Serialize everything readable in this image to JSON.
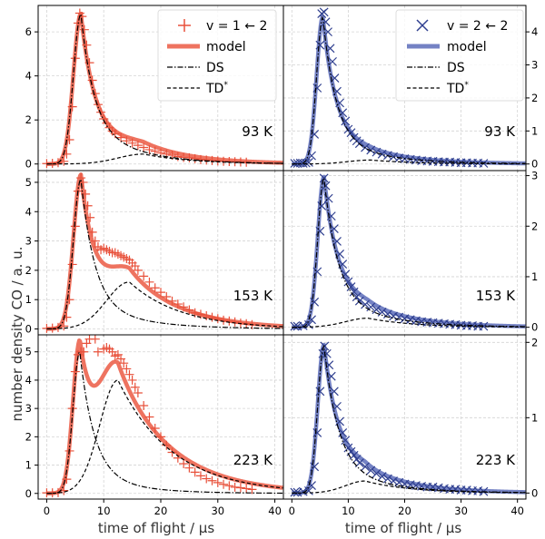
{
  "figure": {
    "ylabel": "number density CO / a. u.",
    "xlabel_left": "time of flight / µs",
    "xlabel_right": "time of flight / µs",
    "xlim": [
      -1.5,
      41.5
    ],
    "x_ticks": [
      "0",
      "10",
      "20",
      "30",
      "40"
    ]
  },
  "colors": {
    "v1": "#e8503a",
    "v1_model": "#ee7360",
    "v2": "#2f3f8f",
    "v2_model": "#7482c4",
    "ds": "#000000",
    "td": "#000000",
    "grid": "#d4d4d4"
  },
  "legend": {
    "left": {
      "data_label": "v = 1 ← 2",
      "model_label": "model",
      "ds_label": "DS",
      "td_label": "TD",
      "td_sup": "*"
    },
    "right": {
      "data_label": "v = 2 ← 2",
      "model_label": "model",
      "ds_label": "DS",
      "td_label": "TD",
      "td_sup": "*"
    }
  },
  "chart_data": [
    {
      "type": "line",
      "panel": "v1-93K",
      "temperature_label": "93 K",
      "ylim": [
        -0.3,
        7.2
      ],
      "y_ticks": [
        0,
        2,
        4,
        6
      ],
      "ds": {
        "amp": 6.8,
        "t0": 6.0,
        "rise": 1.3,
        "decay": [
          {
            "w": 0.72,
            "tau": 2.2
          },
          {
            "w": 0.28,
            "tau": 8.5
          }
        ]
      },
      "td": {
        "amp": 0.45,
        "t0": 17.0,
        "rise": 4.5,
        "decay": [
          {
            "w": 1.0,
            "tau": 8.5
          }
        ]
      },
      "data_points": [
        [
          0,
          0.02
        ],
        [
          1,
          0.03
        ],
        [
          2,
          0.06
        ],
        [
          3,
          0.12
        ],
        [
          3.5,
          0.45
        ],
        [
          4,
          1.1
        ],
        [
          4.5,
          2.6
        ],
        [
          5,
          4.8
        ],
        [
          5.5,
          6.4
        ],
        [
          5.8,
          6.85
        ],
        [
          6.2,
          6.7
        ],
        [
          6.6,
          6.1
        ],
        [
          7,
          5.4
        ],
        [
          7.5,
          4.6
        ],
        [
          8,
          3.8
        ],
        [
          8.5,
          3.2
        ],
        [
          9,
          2.7
        ],
        [
          9.5,
          2.35
        ],
        [
          10,
          2.05
        ],
        [
          10.5,
          1.85
        ],
        [
          11,
          1.65
        ],
        [
          11.5,
          1.5
        ],
        [
          12,
          1.38
        ],
        [
          13,
          1.2
        ],
        [
          14,
          1.05
        ],
        [
          15,
          0.95
        ],
        [
          16,
          0.85
        ],
        [
          17,
          0.75
        ],
        [
          18,
          0.65
        ],
        [
          19,
          0.58
        ],
        [
          20,
          0.5
        ],
        [
          21,
          0.45
        ],
        [
          22,
          0.4
        ],
        [
          23,
          0.34
        ],
        [
          24,
          0.3
        ],
        [
          25,
          0.28
        ],
        [
          26,
          0.24
        ],
        [
          27,
          0.2
        ],
        [
          28,
          0.18
        ],
        [
          29,
          0.16
        ],
        [
          30,
          0.14
        ],
        [
          31,
          0.12
        ],
        [
          32,
          0.11
        ],
        [
          33,
          0.1
        ],
        [
          34,
          0.09
        ],
        [
          35,
          0.08
        ]
      ]
    },
    {
      "type": "line",
      "panel": "v2-93K",
      "temperature_label": "93 K",
      "ylim": [
        -0.2,
        4.8
      ],
      "y_ticks": [
        0,
        1,
        2,
        3,
        4
      ],
      "ds": {
        "amp": 4.45,
        "t0": 5.5,
        "rise": 1.1,
        "decay": [
          {
            "w": 0.82,
            "tau": 2.3
          },
          {
            "w": 0.18,
            "tau": 9.0
          }
        ]
      },
      "td": {
        "amp": 0.12,
        "t0": 14.0,
        "rise": 4.0,
        "decay": [
          {
            "w": 1.0,
            "tau": 8.0
          }
        ]
      },
      "data_points": [
        [
          0.5,
          0.02
        ],
        [
          1,
          0.02
        ],
        [
          1.5,
          0.03
        ],
        [
          2,
          0.02
        ],
        [
          2.5,
          0.03
        ],
        [
          3,
          0.05
        ],
        [
          3.5,
          0.25
        ],
        [
          4,
          0.9
        ],
        [
          4.5,
          2.3
        ],
        [
          5,
          3.6
        ],
        [
          5.3,
          4.55
        ],
        [
          5.7,
          4.6
        ],
        [
          6,
          4.3
        ],
        [
          6.4,
          4.0
        ],
        [
          6.8,
          3.5
        ],
        [
          7.2,
          3.1
        ],
        [
          7.6,
          2.6
        ],
        [
          8,
          2.2
        ],
        [
          8.5,
          1.85
        ],
        [
          9,
          1.55
        ],
        [
          9.5,
          1.3
        ],
        [
          10,
          1.05
        ],
        [
          10.5,
          0.95
        ],
        [
          11,
          0.8
        ],
        [
          11.5,
          0.7
        ],
        [
          12,
          0.62
        ],
        [
          13,
          0.5
        ],
        [
          14,
          0.42
        ],
        [
          15,
          0.36
        ],
        [
          16,
          0.3
        ],
        [
          17,
          0.26
        ],
        [
          18,
          0.22
        ],
        [
          19,
          0.18
        ],
        [
          20,
          0.16
        ],
        [
          21,
          0.14
        ],
        [
          22,
          0.12
        ],
        [
          23,
          0.1
        ],
        [
          24,
          0.09
        ],
        [
          25,
          0.08
        ],
        [
          26,
          0.07
        ],
        [
          27,
          0.06
        ],
        [
          28,
          0.06
        ],
        [
          29,
          0.05
        ],
        [
          30,
          0.04
        ],
        [
          31,
          0.04
        ],
        [
          32,
          0.03
        ],
        [
          33,
          0.03
        ],
        [
          34,
          0.02
        ]
      ]
    },
    {
      "type": "line",
      "panel": "v1-153K",
      "temperature_label": "153 K",
      "ylim": [
        -0.2,
        5.4
      ],
      "y_ticks": [
        0,
        1,
        2,
        3,
        4,
        5
      ],
      "ds": {
        "amp": 5.1,
        "t0": 6.0,
        "rise": 1.3,
        "decay": [
          {
            "w": 0.82,
            "tau": 2.4
          },
          {
            "w": 0.18,
            "tau": 9.0
          }
        ]
      },
      "td": {
        "amp": 1.6,
        "t0": 14.5,
        "rise": 4.0,
        "decay": [
          {
            "w": 1.0,
            "tau": 9.0
          }
        ]
      },
      "data_points": [
        [
          0,
          0.02
        ],
        [
          1,
          0.03
        ],
        [
          2,
          0.05
        ],
        [
          3,
          0.1
        ],
        [
          3.5,
          0.4
        ],
        [
          4,
          1.0
        ],
        [
          4.5,
          2.2
        ],
        [
          5,
          3.5
        ],
        [
          5.5,
          4.7
        ],
        [
          6,
          5.15
        ],
        [
          6.4,
          5.0
        ],
        [
          6.8,
          4.6
        ],
        [
          7.2,
          4.2
        ],
        [
          7.6,
          3.8
        ],
        [
          8,
          3.3
        ],
        [
          8.5,
          3.0
        ],
        [
          9,
          2.8
        ],
        [
          9.5,
          2.7
        ],
        [
          10,
          2.75
        ],
        [
          10.5,
          2.7
        ],
        [
          11,
          2.65
        ],
        [
          11.5,
          2.6
        ],
        [
          12,
          2.6
        ],
        [
          12.5,
          2.55
        ],
        [
          13,
          2.5
        ],
        [
          13.5,
          2.45
        ],
        [
          14,
          2.4
        ],
        [
          14.5,
          2.35
        ],
        [
          15,
          2.25
        ],
        [
          15.5,
          2.15
        ],
        [
          16,
          2.0
        ],
        [
          17,
          1.8
        ],
        [
          18,
          1.6
        ],
        [
          19,
          1.4
        ],
        [
          20,
          1.25
        ],
        [
          21,
          1.1
        ],
        [
          22,
          0.95
        ],
        [
          23,
          0.85
        ],
        [
          24,
          0.75
        ],
        [
          25,
          0.65
        ],
        [
          26,
          0.55
        ],
        [
          27,
          0.5
        ],
        [
          28,
          0.45
        ],
        [
          29,
          0.4
        ],
        [
          30,
          0.35
        ],
        [
          31,
          0.3
        ],
        [
          32,
          0.27
        ],
        [
          33,
          0.24
        ],
        [
          34,
          0.2
        ],
        [
          35,
          0.18
        ],
        [
          36,
          0.15
        ]
      ]
    },
    {
      "type": "line",
      "panel": "v2-153K",
      "temperature_label": "153 K",
      "ylim": [
        -0.15,
        3.1
      ],
      "y_ticks": [
        0,
        1,
        2,
        3
      ],
      "ds": {
        "amp": 2.95,
        "t0": 5.7,
        "rise": 1.1,
        "decay": [
          {
            "w": 0.78,
            "tau": 2.4
          },
          {
            "w": 0.22,
            "tau": 9.0
          }
        ]
      },
      "td": {
        "amp": 0.18,
        "t0": 13.5,
        "rise": 4.0,
        "decay": [
          {
            "w": 1.0,
            "tau": 8.0
          }
        ]
      },
      "data_points": [
        [
          0.5,
          0.02
        ],
        [
          1,
          0.02
        ],
        [
          2,
          0.03
        ],
        [
          3,
          0.05
        ],
        [
          3.5,
          0.15
        ],
        [
          4,
          0.5
        ],
        [
          4.5,
          1.1
        ],
        [
          5,
          1.9
        ],
        [
          5.3,
          2.4
        ],
        [
          5.7,
          2.95
        ],
        [
          6,
          2.8
        ],
        [
          6.5,
          2.55
        ],
        [
          7,
          2.2
        ],
        [
          7.5,
          1.95
        ],
        [
          8,
          1.7
        ],
        [
          8.5,
          1.45
        ],
        [
          9,
          1.25
        ],
        [
          9.5,
          1.05
        ],
        [
          10,
          0.9
        ],
        [
          10.5,
          0.8
        ],
        [
          11,
          0.7
        ],
        [
          11.5,
          0.6
        ],
        [
          12,
          0.52
        ],
        [
          13,
          0.45
        ],
        [
          14,
          0.4
        ],
        [
          15,
          0.35
        ],
        [
          16,
          0.3
        ],
        [
          17,
          0.26
        ],
        [
          18,
          0.22
        ],
        [
          19,
          0.2
        ],
        [
          20,
          0.17
        ],
        [
          21,
          0.15
        ],
        [
          22,
          0.13
        ],
        [
          23,
          0.11
        ],
        [
          24,
          0.1
        ],
        [
          25,
          0.09
        ],
        [
          26,
          0.08
        ],
        [
          27,
          0.07
        ],
        [
          28,
          0.06
        ],
        [
          29,
          0.05
        ],
        [
          30,
          0.04
        ],
        [
          31,
          0.03
        ],
        [
          32,
          0.03
        ],
        [
          33,
          0.02
        ],
        [
          34,
          0.02
        ]
      ]
    },
    {
      "type": "line",
      "panel": "v1-223K",
      "temperature_label": "223 K",
      "ylim": [
        -0.2,
        5.6
      ],
      "y_ticks": [
        0,
        1,
        2,
        3,
        4,
        5
      ],
      "ds": {
        "amp": 5.0,
        "t0": 5.8,
        "rise": 1.2,
        "decay": [
          {
            "w": 0.85,
            "tau": 2.5
          },
          {
            "w": 0.15,
            "tau": 8.0
          }
        ]
      },
      "td": {
        "amp": 4.0,
        "t0": 12.5,
        "rise": 3.2,
        "decay": [
          {
            "w": 1.0,
            "tau": 9.5
          }
        ]
      },
      "data_points": [
        [
          0,
          0.02
        ],
        [
          1,
          0.02
        ],
        [
          2,
          0.03
        ],
        [
          3,
          0.1
        ],
        [
          3.5,
          0.5
        ],
        [
          4,
          1.5
        ],
        [
          4.5,
          3.0
        ],
        [
          5,
          4.3
        ],
        [
          5.5,
          4.9
        ],
        [
          6,
          5.0
        ],
        [
          6.5,
          5.0
        ],
        [
          7,
          5.3
        ],
        [
          7.5,
          5.45
        ],
        [
          8.5,
          5.45
        ],
        [
          9,
          5.0
        ],
        [
          10,
          5.1
        ],
        [
          10.5,
          5.15
        ],
        [
          11,
          5.1
        ],
        [
          11.5,
          5.0
        ],
        [
          12,
          4.85
        ],
        [
          12.5,
          4.9
        ],
        [
          13,
          4.75
        ],
        [
          13.5,
          4.6
        ],
        [
          14,
          4.4
        ],
        [
          14.5,
          4.2
        ],
        [
          15,
          4.0
        ],
        [
          15.5,
          3.75
        ],
        [
          16,
          3.55
        ],
        [
          17,
          3.1
        ],
        [
          18,
          2.7
        ],
        [
          19,
          2.3
        ],
        [
          20,
          2.0
        ],
        [
          21,
          1.7
        ],
        [
          22,
          1.45
        ],
        [
          23,
          1.25
        ],
        [
          24,
          1.05
        ],
        [
          25,
          0.9
        ],
        [
          26,
          0.75
        ],
        [
          27,
          0.62
        ],
        [
          28,
          0.52
        ],
        [
          29,
          0.45
        ],
        [
          30,
          0.38
        ],
        [
          31,
          0.32
        ],
        [
          32,
          0.27
        ],
        [
          33,
          0.22
        ],
        [
          34,
          0.2
        ],
        [
          35,
          0.17
        ],
        [
          36,
          0.14
        ]
      ]
    },
    {
      "type": "line",
      "panel": "v2-223K",
      "temperature_label": "223 K",
      "ylim": [
        -0.08,
        2.1
      ],
      "y_ticks": [
        0,
        1,
        2
      ],
      "ds": {
        "amp": 1.95,
        "t0": 5.7,
        "rise": 1.1,
        "decay": [
          {
            "w": 0.8,
            "tau": 2.5
          },
          {
            "w": 0.2,
            "tau": 9.0
          }
        ]
      },
      "td": {
        "amp": 0.16,
        "t0": 13.0,
        "rise": 3.5,
        "decay": [
          {
            "w": 1.0,
            "tau": 8.0
          }
        ]
      },
      "data_points": [
        [
          0.5,
          0.01
        ],
        [
          1,
          0.01
        ],
        [
          2,
          0.02
        ],
        [
          3,
          0.03
        ],
        [
          3.5,
          0.1
        ],
        [
          4,
          0.35
        ],
        [
          4.5,
          0.8
        ],
        [
          5,
          1.35
        ],
        [
          5.5,
          1.85
        ],
        [
          5.8,
          1.95
        ],
        [
          6.2,
          1.85
        ],
        [
          6.6,
          1.7
        ],
        [
          7,
          1.55
        ],
        [
          7.5,
          1.35
        ],
        [
          8,
          1.15
        ],
        [
          8.5,
          0.95
        ],
        [
          9,
          0.8
        ],
        [
          9.5,
          0.7
        ],
        [
          10,
          0.6
        ],
        [
          10.5,
          0.55
        ],
        [
          11,
          0.5
        ],
        [
          11.5,
          0.45
        ],
        [
          12,
          0.4
        ],
        [
          13,
          0.35
        ],
        [
          14,
          0.3
        ],
        [
          15,
          0.26
        ],
        [
          16,
          0.22
        ],
        [
          17,
          0.19
        ],
        [
          18,
          0.16
        ],
        [
          19,
          0.14
        ],
        [
          20,
          0.12
        ],
        [
          21,
          0.11
        ],
        [
          22,
          0.1
        ],
        [
          23,
          0.09
        ],
        [
          24,
          0.08
        ],
        [
          25,
          0.08
        ],
        [
          26,
          0.07
        ],
        [
          27,
          0.06
        ],
        [
          28,
          0.05
        ],
        [
          29,
          0.05
        ],
        [
          30,
          0.04
        ],
        [
          31,
          0.04
        ],
        [
          32,
          0.03
        ],
        [
          33,
          0.03
        ],
        [
          34,
          0.02
        ]
      ]
    }
  ]
}
